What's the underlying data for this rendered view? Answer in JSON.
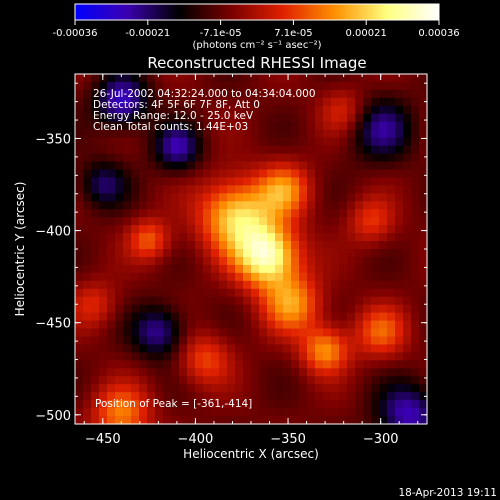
{
  "colorbar": {
    "ticks": [
      "-0.00036",
      "-0.00021",
      "-7.1e-05",
      "7.1e-05",
      "0.00021",
      "0.00036"
    ],
    "unit_label": "(photons cm⁻² s⁻¹ asec⁻²)",
    "stops": [
      "#0000ff",
      "#3b00b0",
      "#000000",
      "#7a0000",
      "#e02000",
      "#ff9000",
      "#ffff80",
      "#ffffff"
    ]
  },
  "chart_data": {
    "type": "heatmap",
    "title": "Reconstructed RHESSI Image",
    "xlabel": "Heliocentric X (arcsec)",
    "ylabel": "Heliocentric Y (arcsec)",
    "xlim": [
      -465,
      -275
    ],
    "ylim": [
      -505,
      -315
    ],
    "xticks": [
      -450,
      -400,
      -350,
      -300
    ],
    "yticks": [
      -350,
      -400,
      -450,
      -500
    ],
    "info_lines": [
      "26-Jul-2002 04:32:24.000 to 04:34:04.000",
      "Detectors: 4F 5F 6F 7F 8F, Att 0",
      "Energy Range: 12.0 - 25.0 keV",
      "Clean     Total counts: 1.44E+03"
    ],
    "peak": {
      "x": -361,
      "y": -414,
      "label": "Position of Peak = [-361,-414]"
    },
    "intensity_range": [
      -0.00036,
      0.00036
    ],
    "sources": [
      {
        "x": -361,
        "y": -414,
        "sigma": 12,
        "amp": 1.0
      },
      {
        "x": -378,
        "y": -392,
        "sigma": 14,
        "amp": 0.8
      },
      {
        "x": -352,
        "y": -378,
        "sigma": 10,
        "amp": 0.55
      },
      {
        "x": -348,
        "y": -440,
        "sigma": 11,
        "amp": 0.6
      },
      {
        "x": -330,
        "y": -465,
        "sigma": 9,
        "amp": 0.6
      },
      {
        "x": -300,
        "y": -455,
        "sigma": 10,
        "amp": 0.45
      },
      {
        "x": -305,
        "y": -395,
        "sigma": 9,
        "amp": 0.35
      },
      {
        "x": -425,
        "y": -405,
        "sigma": 8,
        "amp": 0.45
      },
      {
        "x": -440,
        "y": -500,
        "sigma": 11,
        "amp": 0.55
      },
      {
        "x": -395,
        "y": -470,
        "sigma": 10,
        "amp": 0.4
      },
      {
        "x": -455,
        "y": -440,
        "sigma": 9,
        "amp": 0.3
      },
      {
        "x": -320,
        "y": -335,
        "sigma": 9,
        "amp": 0.3
      },
      {
        "x": -440,
        "y": -330,
        "sigma": 10,
        "amp": -0.6
      },
      {
        "x": -410,
        "y": -355,
        "sigma": 9,
        "amp": -0.5
      },
      {
        "x": -300,
        "y": -345,
        "sigma": 12,
        "amp": -0.45
      },
      {
        "x": -420,
        "y": -455,
        "sigma": 10,
        "amp": -0.5
      },
      {
        "x": -285,
        "y": -500,
        "sigma": 12,
        "amp": -0.55
      },
      {
        "x": -450,
        "y": -375,
        "sigma": 9,
        "amp": -0.4
      }
    ]
  },
  "timestamp": "18-Apr-2013 19:11"
}
